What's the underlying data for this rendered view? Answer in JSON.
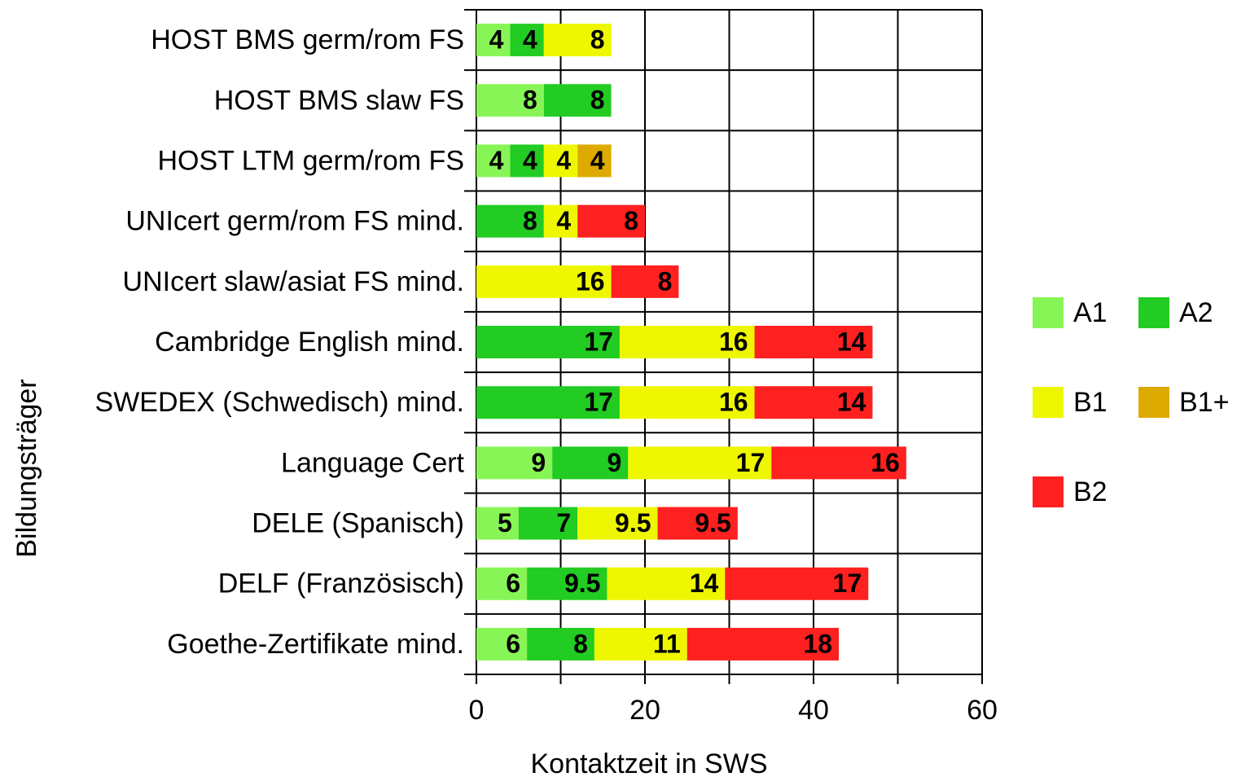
{
  "chart_data": {
    "type": "stacked_barh",
    "xlabel": "Kontaktzeit in SWS",
    "ylabel": "Bildungsträger",
    "categories": [
      "HOST BMS germ/rom FS",
      "HOST BMS slaw FS",
      "HOST LTM germ/rom FS",
      "UNIcert germ/rom FS mind.",
      "UNIcert slaw/asiat FS mind.",
      "Cambridge English mind.",
      "SWEDEX (Schwedisch) mind.",
      "Language Cert",
      "DELE (Spanisch)",
      "DELF (Französisch)",
      "Goethe-Zertifikate mind."
    ],
    "series": [
      {
        "name": "A1",
        "color": "#88f556",
        "values": [
          4,
          8,
          4,
          null,
          null,
          null,
          null,
          9,
          5,
          6,
          6
        ]
      },
      {
        "name": "A2",
        "color": "#22cc22",
        "values": [
          4,
          8,
          4,
          8,
          null,
          17,
          17,
          9,
          7,
          9.5,
          8
        ]
      },
      {
        "name": "B1",
        "color": "#eef700",
        "values": [
          8,
          null,
          4,
          4,
          16,
          16,
          16,
          17,
          9.5,
          14,
          11
        ]
      },
      {
        "name": "B1+",
        "color": "#ddaa00",
        "values": [
          null,
          null,
          4,
          null,
          null,
          null,
          null,
          null,
          null,
          null,
          null
        ]
      },
      {
        "name": "B2",
        "color": "#ff2020",
        "values": [
          null,
          null,
          null,
          8,
          8,
          14,
          14,
          16,
          9.5,
          17,
          18
        ]
      }
    ],
    "xlim": [
      0,
      60
    ],
    "xticks": [
      0,
      20,
      40,
      60
    ],
    "x_minor_ticks": [
      10,
      30,
      50
    ],
    "grid": true,
    "legend": "right"
  }
}
